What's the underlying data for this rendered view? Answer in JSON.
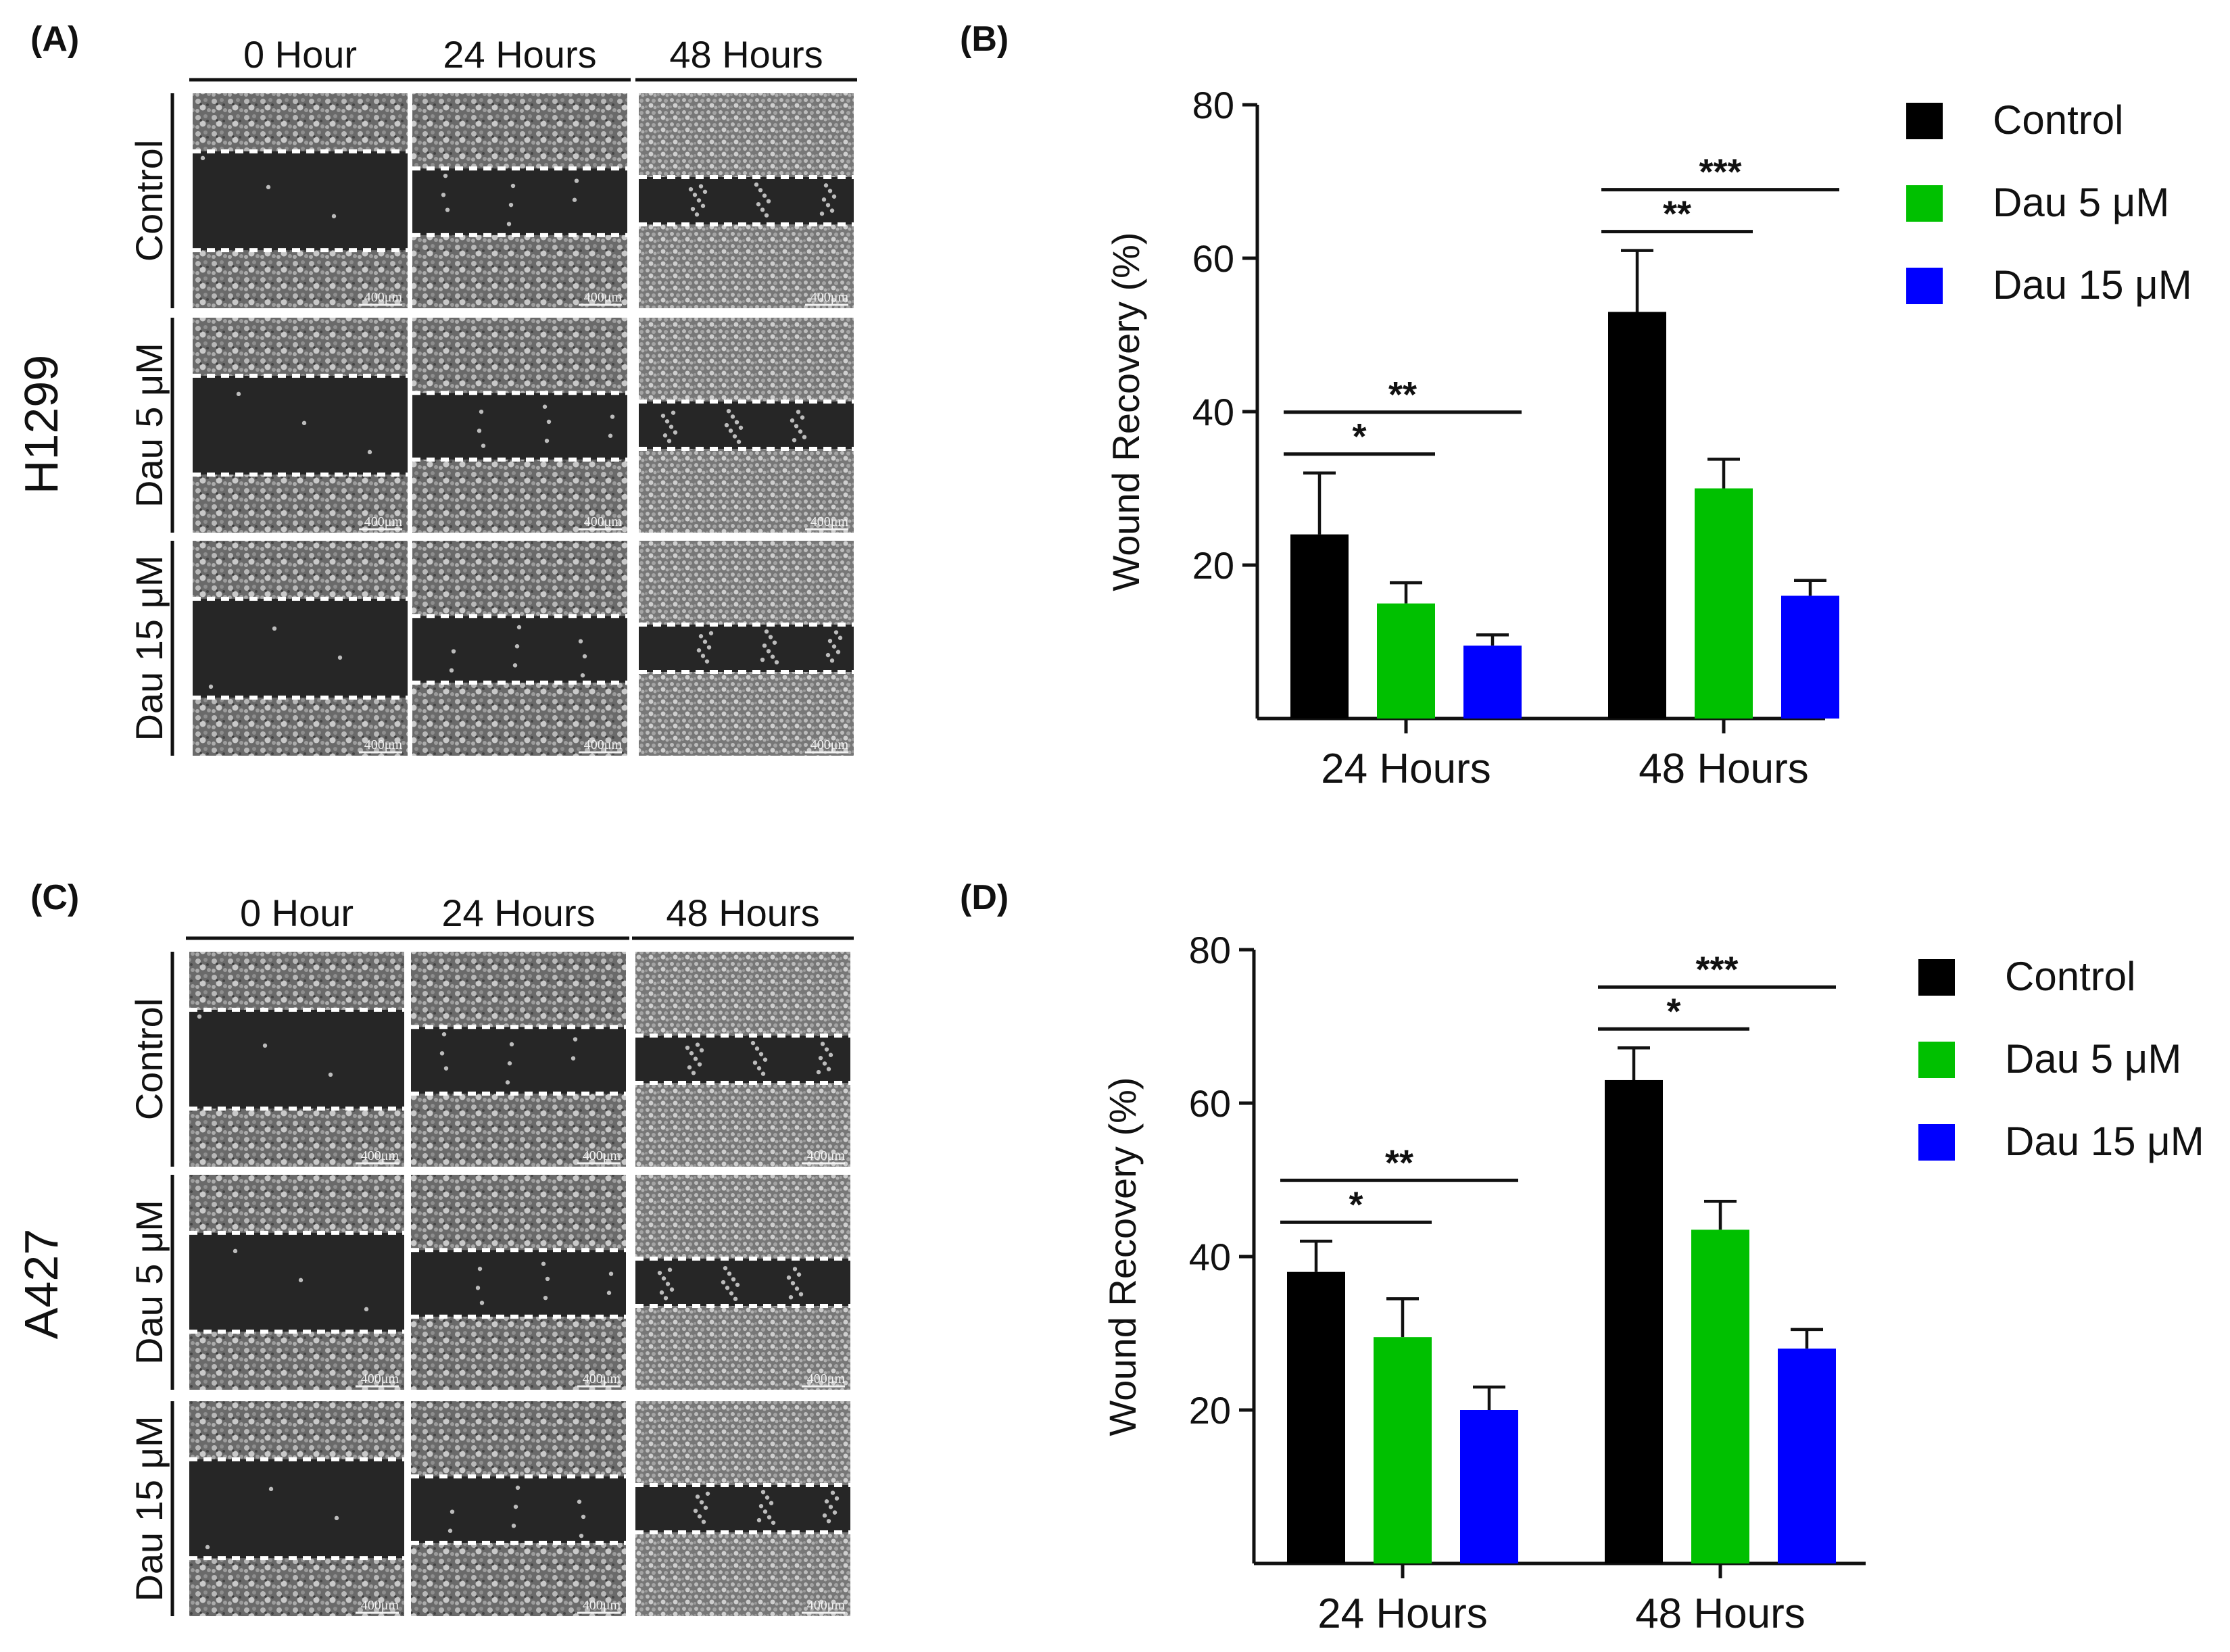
{
  "figure": {
    "panels": {
      "A": "(A)",
      "B": "(B)",
      "C": "(C)",
      "D": "(D)"
    },
    "micrographs": [
      {
        "cell_line": "H1299",
        "column_headers": [
          "0 Hour",
          "24 Hours",
          "48 Hours"
        ],
        "row_labels": [
          "Control",
          "Dau 5 μM",
          "Dau 15 μM"
        ],
        "scale_bar": "400μm"
      },
      {
        "cell_line": "A427",
        "column_headers": [
          "0 Hour",
          "24 Hours",
          "48 Hours"
        ],
        "row_labels": [
          "Control",
          "Dau 5 μM",
          "Dau 15 μM"
        ],
        "scale_bar": "400μm"
      }
    ]
  },
  "colors": {
    "Control": "#000000",
    "Dau 5 μM": "#00c000",
    "Dau 15 μM": "#0000ff"
  },
  "chart_data": [
    {
      "panel": "B",
      "type": "bar",
      "categories": [
        "24 Hours",
        "48 Hours"
      ],
      "series": [
        {
          "name": "Control",
          "values": [
            24,
            53
          ],
          "errors": [
            8,
            8
          ]
        },
        {
          "name": "Dau 5 μM",
          "values": [
            15,
            30
          ],
          "errors": [
            2.7,
            3.8
          ]
        },
        {
          "name": "Dau 15 μM",
          "values": [
            9.5,
            16
          ],
          "errors": [
            1.4,
            2
          ]
        }
      ],
      "ylabel": "Wound Recovery (%)",
      "xlabel": "",
      "ylim": [
        0,
        80
      ],
      "yticks": [
        20,
        40,
        60,
        80
      ],
      "legend": "top-right",
      "significance": [
        {
          "category": "24 Hours",
          "from": "Control",
          "to": "Dau 5 μM",
          "label": "*"
        },
        {
          "category": "24 Hours",
          "from": "Control",
          "to": "Dau 15 μM",
          "label": "**"
        },
        {
          "category": "48 Hours",
          "from": "Control",
          "to": "Dau 5 μM",
          "label": "**"
        },
        {
          "category": "48 Hours",
          "from": "Control",
          "to": "Dau 15 μM",
          "label": "***"
        }
      ]
    },
    {
      "panel": "D",
      "type": "bar",
      "categories": [
        "24 Hours",
        "48 Hours"
      ],
      "series": [
        {
          "name": "Control",
          "values": [
            38,
            63
          ],
          "errors": [
            4,
            4.2
          ]
        },
        {
          "name": "Dau 5 μM",
          "values": [
            29.5,
            43.5
          ],
          "errors": [
            5,
            3.7
          ]
        },
        {
          "name": "Dau 15 μM",
          "values": [
            20,
            28
          ],
          "errors": [
            3,
            2.5
          ]
        }
      ],
      "ylabel": "Wound Recovery (%)",
      "xlabel": "",
      "ylim": [
        0,
        80
      ],
      "yticks": [
        20,
        40,
        60,
        80
      ],
      "legend": "top-right",
      "significance": [
        {
          "category": "24 Hours",
          "from": "Control",
          "to": "Dau 5 μM",
          "label": "*"
        },
        {
          "category": "24 Hours",
          "from": "Control",
          "to": "Dau 15 μM",
          "label": "**"
        },
        {
          "category": "48 Hours",
          "from": "Control",
          "to": "Dau 5 μM",
          "label": "*"
        },
        {
          "category": "48 Hours",
          "from": "Control",
          "to": "Dau 15 μM",
          "label": "***"
        }
      ]
    }
  ]
}
